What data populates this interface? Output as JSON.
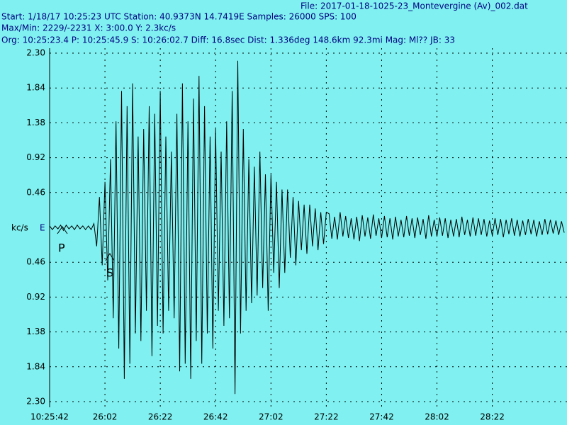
{
  "chart_data": {
    "type": "line",
    "header_lines": [
      "File: 2017-01-18-1025-23_Montevergine (Av)_002.dat",
      "Start: 1/18/17 10:25:23 UTC Station:  40.9373N 14.7419E Samples: 26000  SPS: 100",
      "Max/Min: 2229/-2231 X: 3:00.0 Y: 2.3kc/s",
      "Org: 10:25:23.4 P: 10:25:45.9 S: 10:26:02.7 Diff: 16.8sec Dist: 1.336deg 148.6km 92.3mi  Mag: Ml?? JB: 33"
    ],
    "y_label": "kc/s",
    "channel": "E",
    "annotations": [
      "P",
      "S"
    ],
    "color": "#000000",
    "background": "#80f0f0",
    "grid": true,
    "xlim": [
      0,
      187
    ],
    "ylim": [
      -2.3,
      2.3
    ],
    "xticks": [
      {
        "value": 0,
        "label": "10:25:42"
      },
      {
        "value": 20,
        "label": "26:02"
      },
      {
        "value": 40,
        "label": "26:22"
      },
      {
        "value": 60,
        "label": "26:42"
      },
      {
        "value": 80,
        "label": "27:02"
      },
      {
        "value": 100,
        "label": "27:22"
      },
      {
        "value": 120,
        "label": "27:42"
      },
      {
        "value": 140,
        "label": "28:02"
      },
      {
        "value": 160,
        "label": "28:22"
      }
    ],
    "yticks": [
      {
        "value": 2.3,
        "label": "2.30"
      },
      1.84,
      1.38,
      0.92,
      0.46,
      {
        "value": -0.46,
        "label": "0.46"
      },
      {
        "value": -0.92,
        "label": "0.92"
      },
      {
        "value": -1.38,
        "label": "1.38"
      },
      {
        "value": -1.84,
        "label": "1.84"
      },
      {
        "value": -2.3,
        "label": "2.30"
      }
    ],
    "x": [
      0,
      1,
      2,
      3,
      4,
      5,
      6,
      7,
      8,
      9,
      10,
      11,
      12,
      13,
      14,
      15,
      16,
      17,
      18,
      19,
      20,
      21,
      22,
      23,
      24,
      25,
      26,
      27,
      28,
      29,
      30,
      31,
      32,
      33,
      34,
      35,
      36,
      37,
      38,
      39,
      40,
      41,
      42,
      43,
      44,
      45,
      46,
      47,
      48,
      49,
      50,
      51,
      52,
      53,
      54,
      55,
      56,
      57,
      58,
      59,
      60,
      61,
      62,
      63,
      64,
      65,
      66,
      67,
      68,
      69,
      70,
      71,
      72,
      73,
      74,
      75,
      76,
      77,
      78,
      79,
      80,
      81,
      82,
      83,
      84,
      85,
      86,
      87,
      88,
      89,
      90,
      91,
      92,
      93,
      94,
      95,
      96,
      97,
      98,
      99,
      100,
      101,
      102,
      103,
      104,
      105,
      106,
      107,
      108,
      109,
      110,
      111,
      112,
      113,
      114,
      115,
      116,
      117,
      118,
      119,
      120,
      121,
      122,
      123,
      124,
      125,
      126,
      127,
      128,
      129,
      130,
      131,
      132,
      133,
      134,
      135,
      136,
      137,
      138,
      139,
      140,
      141,
      142,
      143,
      144,
      145,
      146,
      147,
      148,
      149,
      150,
      151,
      152,
      153,
      154,
      155,
      156,
      157,
      158,
      159,
      160,
      161,
      162,
      163,
      164,
      165,
      166,
      167,
      168,
      169,
      170,
      171,
      172,
      173,
      174,
      175,
      176,
      177,
      178,
      179,
      180,
      181,
      182,
      183,
      184,
      185,
      186
    ],
    "values": [
      0.02,
      -0.03,
      0.02,
      -0.02,
      0.03,
      -0.04,
      0.03,
      -0.02,
      0.02,
      -0.03,
      0.03,
      -0.02,
      0.02,
      -0.03,
      0.02,
      -0.03,
      0.05,
      -0.25,
      0.4,
      -0.5,
      0.6,
      -0.7,
      0.9,
      -1.2,
      1.4,
      -1.6,
      1.8,
      -2.0,
      1.6,
      -1.8,
      1.9,
      -1.4,
      1.2,
      -1.5,
      1.3,
      -1.1,
      1.6,
      -1.7,
      1.5,
      -1.3,
      1.8,
      -1.4,
      1.2,
      -1.1,
      1.0,
      -1.2,
      1.5,
      -1.9,
      1.9,
      -1.8,
      1.4,
      -2.0,
      1.7,
      -1.5,
      2.0,
      -1.8,
      1.6,
      -1.4,
      1.2,
      -1.6,
      1.3,
      -1.1,
      1.0,
      -1.3,
      1.4,
      -1.2,
      1.8,
      -2.2,
      2.2,
      -1.4,
      1.3,
      -1.1,
      0.9,
      -1.0,
      0.8,
      -0.9,
      1.0,
      -0.8,
      0.7,
      -1.1,
      0.7,
      -0.6,
      0.6,
      -0.8,
      0.5,
      -0.6,
      0.5,
      -0.4,
      0.4,
      -0.5,
      0.35,
      -0.3,
      0.3,
      -0.35,
      0.3,
      -0.25,
      0.25,
      -0.3,
      0.2,
      -0.22,
      0.2,
      0.18,
      -0.15,
      0.14,
      -0.16,
      0.2,
      -0.12,
      0.15,
      -0.14,
      0.12,
      -0.16,
      0.14,
      -0.18,
      0.16,
      -0.12,
      0.13,
      -0.15,
      0.17,
      -0.11,
      0.12,
      -0.14,
      0.15,
      -0.13,
      0.12,
      -0.16,
      0.14,
      -0.12,
      0.1,
      -0.13,
      0.15,
      -0.11,
      0.12,
      -0.14,
      0.13,
      -0.1,
      0.11,
      -0.15,
      0.16,
      -0.12,
      0.1,
      -0.12,
      0.13,
      -0.11,
      0.12,
      -0.14,
      0.1,
      -0.12,
      0.11,
      -0.13,
      0.14,
      -0.1,
      0.1,
      -0.12,
      0.13,
      -0.11,
      0.12,
      -0.1,
      0.11,
      -0.12,
      0.09,
      -0.11,
      0.12,
      -0.1,
      0.11,
      -0.13,
      0.1,
      -0.09,
      0.12,
      -0.11,
      0.1,
      -0.12,
      0.09,
      -0.1,
      0.11,
      -0.09,
      0.1,
      -0.12,
      0.08,
      -0.1,
      0.11,
      -0.09,
      0.1,
      -0.08,
      0.09,
      -0.1,
      0.08,
      -0.07
    ]
  }
}
